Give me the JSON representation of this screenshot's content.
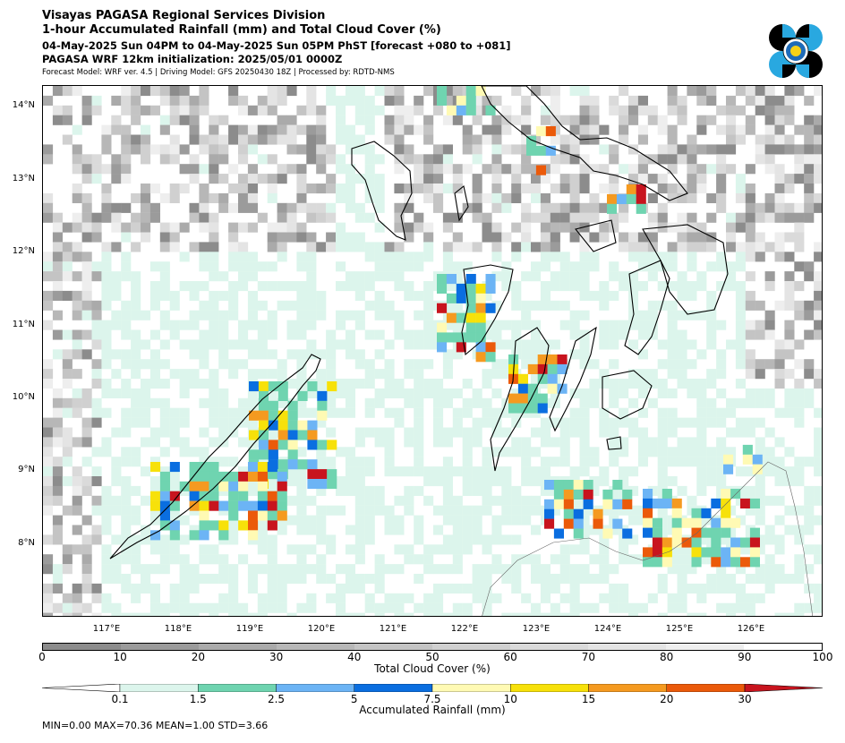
{
  "header": {
    "line1": "Visayas PAGASA Regional Services Division",
    "line2": "1-hour Accumulated Rainfall (mm) and Total Cloud Cover (%)",
    "line3": "04-May-2025 Sun 04PM to 04-May-2025 Sun 05PM PhST [forecast +080 to +081]",
    "line4": "PAGASA WRF 12km initialization: 2025/05/01 0000Z",
    "line5": "Forecast Model: WRF ver. 4.5 | Driving Model: GFS 20250430 18Z | Processed by: RDTD-NMS"
  },
  "logo": {
    "name": "pagasa-logo-icon"
  },
  "map": {
    "lat_labels": [
      "14°N",
      "13°N",
      "12°N",
      "11°N",
      "10°N",
      "9°N",
      "8°N"
    ],
    "lon_labels": [
      "117°E",
      "118°E",
      "119°E",
      "120°E",
      "121°E",
      "122°E",
      "123°E",
      "124°E",
      "125°E",
      "126°E"
    ],
    "extent": {
      "lon_min": 116.1,
      "lon_max": 127.0,
      "lat_min": 7.0,
      "lat_max": 14.3
    }
  },
  "cloud_bar": {
    "label": "Total Cloud Cover (%)",
    "ticks": [
      "0",
      "10",
      "20",
      "30",
      "40",
      "50",
      "60",
      "70",
      "80",
      "90",
      "100"
    ],
    "colors": [
      "#8c8c8c",
      "#9b9b9b",
      "#aaaaaa",
      "#b7b7b7",
      "#c4c4c4",
      "#d0d0d0",
      "#dadada",
      "#e4e4e4",
      "#eeeeee",
      "#ffffff"
    ]
  },
  "rain_bar": {
    "label": "Accumulated Rainfall (mm)",
    "ticks": [
      "0.1",
      "1.5",
      "2.5",
      "5",
      "7.5",
      "10",
      "15",
      "20",
      "30"
    ],
    "colors": [
      "#ffffff",
      "#dcf5ec",
      "#6fd4b0",
      "#6cb4f5",
      "#0a6ee0",
      "#fffab4",
      "#f7e10a",
      "#f59a20",
      "#eb5a0a",
      "#c8141e"
    ]
  },
  "stats": "MIN=0.00   MAX=70.36   MEAN=1.00   STD=3.66"
}
